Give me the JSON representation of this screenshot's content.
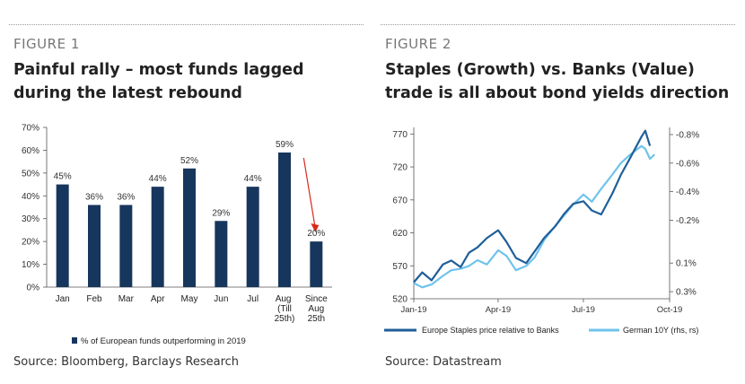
{
  "figure1": {
    "label": "FIGURE 1",
    "title": "Painful rally – most funds lagged during the latest rebound",
    "source": "Source: Bloomberg, Barclays Research"
  },
  "figure2": {
    "label": "FIGURE 2",
    "title": "Staples (Growth) vs. Banks (Value) trade is all about bond yields direction",
    "source": "Source: Datastream"
  },
  "colors": {
    "bar": "#17365d",
    "arrow": "#d9291c",
    "series1": "#1f5f99",
    "series2": "#6fc3ec"
  },
  "chart_data": [
    {
      "type": "bar",
      "categories": [
        "Jan",
        "Feb",
        "Mar",
        "Apr",
        "May",
        "Jun",
        "Jul",
        "Aug (Till 25th)",
        "Since Aug 25th"
      ],
      "values": [
        45,
        36,
        36,
        44,
        52,
        29,
        44,
        59,
        20
      ],
      "value_labels": [
        "45%",
        "36%",
        "36%",
        "44%",
        "52%",
        "29%",
        "44%",
        "59%",
        "20%"
      ],
      "yticks": [
        "0%",
        "10%",
        "20%",
        "30%",
        "40%",
        "50%",
        "60%",
        "70%"
      ],
      "ylim": [
        0,
        70
      ],
      "legend": "% of European funds outperforming in 2019",
      "legend_position": "bottom",
      "annotation": "arrow from Aug to Since Aug 25th bar",
      "grid": false
    },
    {
      "type": "line",
      "x_range": [
        "2019-01-01",
        "2019-10-01"
      ],
      "xticks": [
        "Jan-19",
        "Apr-19",
        "Jul-19",
        "Oct-19"
      ],
      "yleft": {
        "ticks": [
          "520",
          "570",
          "620",
          "670",
          "720",
          "770"
        ],
        "range": [
          520,
          780
        ]
      },
      "yright": {
        "ticks": [
          "-0.8%",
          "-0.6%",
          "-0.4%",
          "-0.2%",
          "0.1%",
          "0.3%"
        ],
        "range": [
          0.35,
          -0.85
        ],
        "inverted": true
      },
      "series": [
        {
          "name": "Europe Staples price relative to Banks",
          "axis": "left",
          "x": [
            "2019-01-01",
            "2019-01-10",
            "2019-01-20",
            "2019-02-01",
            "2019-02-10",
            "2019-02-20",
            "2019-03-01",
            "2019-03-10",
            "2019-03-20",
            "2019-04-01",
            "2019-04-10",
            "2019-04-20",
            "2019-05-01",
            "2019-05-10",
            "2019-05-20",
            "2019-06-01",
            "2019-06-10",
            "2019-06-20",
            "2019-07-01",
            "2019-07-10",
            "2019-07-20",
            "2019-08-01",
            "2019-08-10",
            "2019-08-20",
            "2019-09-01",
            "2019-09-05",
            "2019-09-10"
          ],
          "y": [
            545,
            560,
            548,
            572,
            578,
            568,
            590,
            598,
            612,
            624,
            606,
            582,
            574,
            592,
            612,
            630,
            648,
            664,
            668,
            654,
            648,
            680,
            708,
            734,
            766,
            775,
            752
          ]
        },
        {
          "name": "German 10Y (rhs, rs)",
          "axis": "right",
          "x": [
            "2019-01-01",
            "2019-01-10",
            "2019-01-20",
            "2019-02-01",
            "2019-02-10",
            "2019-02-20",
            "2019-03-01",
            "2019-03-10",
            "2019-03-20",
            "2019-04-01",
            "2019-04-10",
            "2019-04-20",
            "2019-05-01",
            "2019-05-10",
            "2019-05-20",
            "2019-06-01",
            "2019-06-10",
            "2019-06-20",
            "2019-07-01",
            "2019-07-10",
            "2019-07-20",
            "2019-08-01",
            "2019-08-10",
            "2019-08-20",
            "2019-09-01",
            "2019-09-05",
            "2019-09-10",
            "2019-09-15"
          ],
          "y": [
            0.24,
            0.27,
            0.25,
            0.19,
            0.15,
            0.14,
            0.12,
            0.08,
            0.11,
            0.01,
            0.05,
            0.15,
            0.12,
            0.06,
            -0.06,
            -0.16,
            -0.23,
            -0.31,
            -0.38,
            -0.33,
            -0.42,
            -0.52,
            -0.6,
            -0.66,
            -0.72,
            -0.7,
            -0.63,
            -0.66
          ]
        }
      ],
      "legend_position": "bottom",
      "grid": false
    }
  ]
}
